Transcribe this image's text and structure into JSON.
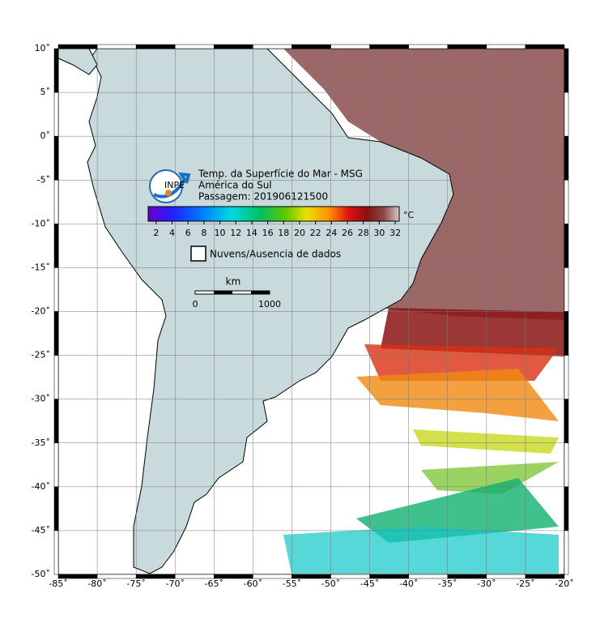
{
  "map": {
    "xlim": [
      -85,
      -20
    ],
    "ylim": [
      -50,
      10
    ],
    "grid": true,
    "xticks": [
      {
        "value": -85,
        "label": "-85˚"
      },
      {
        "value": -80,
        "label": "-80˚"
      },
      {
        "value": -75,
        "label": "-75˚"
      },
      {
        "value": -70,
        "label": "-70˚"
      },
      {
        "value": -65,
        "label": "-65˚"
      },
      {
        "value": -60,
        "label": "-60˚"
      },
      {
        "value": -55,
        "label": "-55˚"
      },
      {
        "value": -50,
        "label": "-50˚"
      },
      {
        "value": -45,
        "label": "-45˚"
      },
      {
        "value": -40,
        "label": "-40˚"
      },
      {
        "value": -35,
        "label": "-35˚"
      },
      {
        "value": -30,
        "label": "-30˚"
      },
      {
        "value": -25,
        "label": "-25˚"
      },
      {
        "value": -20,
        "label": "-20˚"
      }
    ],
    "yticks": [
      {
        "value": 10,
        "label": "10˚"
      },
      {
        "value": 5,
        "label": "5˚"
      },
      {
        "value": 0,
        "label": "0˚"
      },
      {
        "value": -5,
        "label": "-5˚"
      },
      {
        "value": -10,
        "label": "-10˚"
      },
      {
        "value": -15,
        "label": "-15˚"
      },
      {
        "value": -20,
        "label": "-20˚"
      },
      {
        "value": -25,
        "label": "-25˚"
      },
      {
        "value": -30,
        "label": "-30˚"
      },
      {
        "value": -35,
        "label": "-35˚"
      },
      {
        "value": -40,
        "label": "-40˚"
      },
      {
        "value": -45,
        "label": "-45˚"
      },
      {
        "value": -50,
        "label": "-50˚"
      }
    ]
  },
  "legend": {
    "logo_text": "INPE",
    "title_lines": [
      "Temp. da Superfície do Mar - MSG",
      "América do Sul",
      "Passagem: 201906121500"
    ],
    "colorbar": {
      "unit": "°C",
      "lim": [
        1,
        32.5
      ],
      "ticks": [
        2,
        4,
        6,
        8,
        10,
        12,
        14,
        16,
        18,
        20,
        22,
        24,
        26,
        28,
        30,
        32
      ]
    },
    "cloud_label": "Nuvens/Ausencia de dados"
  },
  "scale_bar": {
    "unit": "km",
    "labels": [
      "0",
      "1000"
    ]
  }
}
